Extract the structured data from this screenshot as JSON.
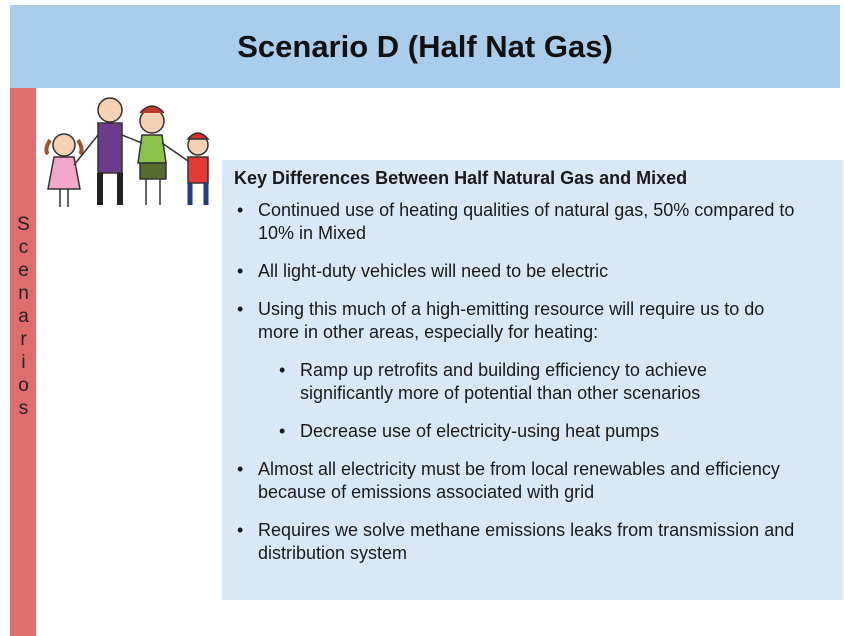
{
  "header": {
    "title": "Scenario D (Half Nat Gas)"
  },
  "sidebar": {
    "label": "Scenarios"
  },
  "content": {
    "heading": "Key Differences Between Half Natural Gas and Mixed",
    "bullets": [
      {
        "text": "Continued use of heating qualities of natural gas, 50% compared to 10% in Mixed"
      },
      {
        "text": "All light-duty vehicles will need to be electric"
      },
      {
        "text": "Using this much of a high-emitting resource will require us to do more in other areas, especially for heating:",
        "sub_bullets": [
          "Ramp up retrofits and building efficiency to achieve significantly more of potential than other scenarios",
          "Decrease use of electricity-using heat pumps"
        ]
      },
      {
        "text": "Almost all electricity must be from local renewables and efficiency because of emissions associated with grid"
      },
      {
        "text": "Requires we solve methane emissions leaks from transmission and distribution system"
      }
    ]
  }
}
